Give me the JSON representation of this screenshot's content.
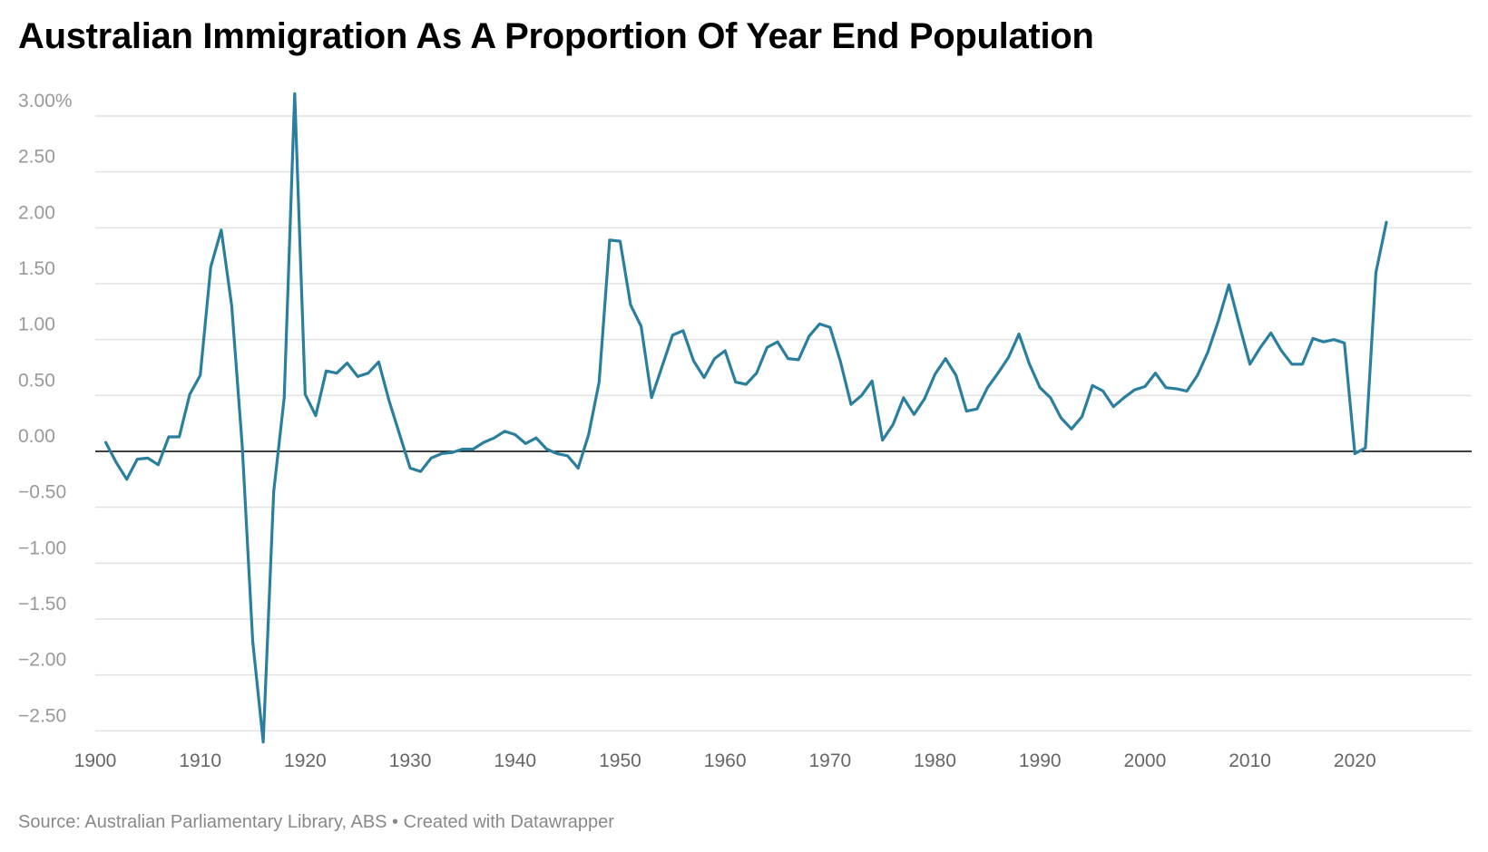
{
  "title": "Australian Immigration As A Proportion Of Year End Population",
  "footer": {
    "source_prefix": "Source: ",
    "source": "Australian Parliamentary Library, ABS",
    "separator": " • ",
    "credit": "Created with Datawrapper"
  },
  "colors": {
    "line": "#2a7f9e",
    "grid": "#e2e2e2",
    "zero_line": "#000000",
    "tick_text": "#999999",
    "x_tick_text": "#666666"
  },
  "chart_data": {
    "type": "line",
    "title": "Australian Immigration As A Proportion Of Year End Population",
    "xlabel": "",
    "ylabel": "",
    "xlim": [
      1900,
      2024
    ],
    "ylim": [
      -2.6,
      3.2
    ],
    "grid": true,
    "y_ticks": [
      3.0,
      2.5,
      2.0,
      1.5,
      1.0,
      0.5,
      0.0,
      -0.5,
      -1.0,
      -1.5,
      -2.0,
      -2.5
    ],
    "y_tick_labels": [
      "3.00%",
      "2.50",
      "2.00",
      "1.50",
      "1.00",
      "0.50",
      "0.00",
      "−0.50",
      "−1.00",
      "−1.50",
      "−2.00",
      "−2.50"
    ],
    "x_ticks": [
      1900,
      1910,
      1920,
      1930,
      1940,
      1950,
      1960,
      1970,
      1980,
      1990,
      2000,
      2010,
      2020
    ],
    "x_tick_labels": [
      "1900",
      "1910",
      "1920",
      "1930",
      "1940",
      "1950",
      "1960",
      "1970",
      "1980",
      "1990",
      "2000",
      "2010",
      "2020"
    ],
    "series": [
      {
        "x": [
          1901,
          1902,
          1903,
          1904,
          1905,
          1906,
          1907,
          1908,
          1909,
          1910,
          1911,
          1912,
          1913,
          1914,
          1915,
          1916,
          1917,
          1918,
          1919,
          1920,
          1921,
          1922,
          1923,
          1924,
          1925,
          1926,
          1927,
          1928,
          1929,
          1930,
          1931,
          1932,
          1933,
          1934,
          1935,
          1936,
          1937,
          1938,
          1939,
          1940,
          1941,
          1942,
          1943,
          1944,
          1945,
          1946,
          1947,
          1948,
          1949,
          1950,
          1951,
          1952,
          1953,
          1954,
          1955,
          1956,
          1957,
          1958,
          1959,
          1960,
          1961,
          1962,
          1963,
          1964,
          1965,
          1966,
          1967,
          1968,
          1969,
          1970,
          1971,
          1972,
          1973,
          1974,
          1975,
          1976,
          1977,
          1978,
          1979,
          1980,
          1981,
          1982,
          1983,
          1984,
          1985,
          1986,
          1987,
          1988,
          1989,
          1990,
          1991,
          1992,
          1993,
          1994,
          1995,
          1996,
          1997,
          1998,
          1999,
          2000,
          2001,
          2002,
          2003,
          2004,
          2005,
          2006,
          2007,
          2008,
          2009,
          2010,
          2011,
          2012,
          2013,
          2014,
          2015,
          2016,
          2017,
          2018,
          2019,
          2020,
          2021,
          2022,
          2023
        ],
        "values": [
          0.08,
          -0.1,
          -0.25,
          -0.07,
          -0.06,
          -0.12,
          0.13,
          0.13,
          0.51,
          0.68,
          1.65,
          1.98,
          1.3,
          0.05,
          -1.7,
          -2.6,
          -0.36,
          0.48,
          3.2,
          0.51,
          0.32,
          0.72,
          0.7,
          0.79,
          0.67,
          0.7,
          0.8,
          0.45,
          0.15,
          -0.15,
          -0.18,
          -0.06,
          -0.02,
          -0.01,
          0.02,
          0.02,
          0.08,
          0.12,
          0.18,
          0.15,
          0.07,
          0.12,
          0.02,
          -0.02,
          -0.04,
          -0.15,
          0.15,
          0.62,
          1.89,
          1.88,
          1.31,
          1.12,
          0.48,
          0.76,
          1.04,
          1.08,
          0.81,
          0.66,
          0.83,
          0.9,
          0.62,
          0.6,
          0.7,
          0.93,
          0.98,
          0.83,
          0.82,
          1.03,
          1.14,
          1.11,
          0.8,
          0.42,
          0.5,
          0.63,
          0.1,
          0.24,
          0.48,
          0.33,
          0.47,
          0.69,
          0.83,
          0.68,
          0.36,
          0.38,
          0.57,
          0.7,
          0.84,
          1.05,
          0.78,
          0.57,
          0.48,
          0.3,
          0.2,
          0.31,
          0.59,
          0.54,
          0.4,
          0.48,
          0.55,
          0.58,
          0.7,
          0.57,
          0.56,
          0.54,
          0.68,
          0.89,
          1.17,
          1.49,
          1.13,
          0.78,
          0.93,
          1.06,
          0.9,
          0.78,
          0.78,
          1.01,
          0.98,
          1.0,
          0.97,
          -0.02,
          0.03,
          1.6,
          2.05
        ]
      }
    ]
  }
}
